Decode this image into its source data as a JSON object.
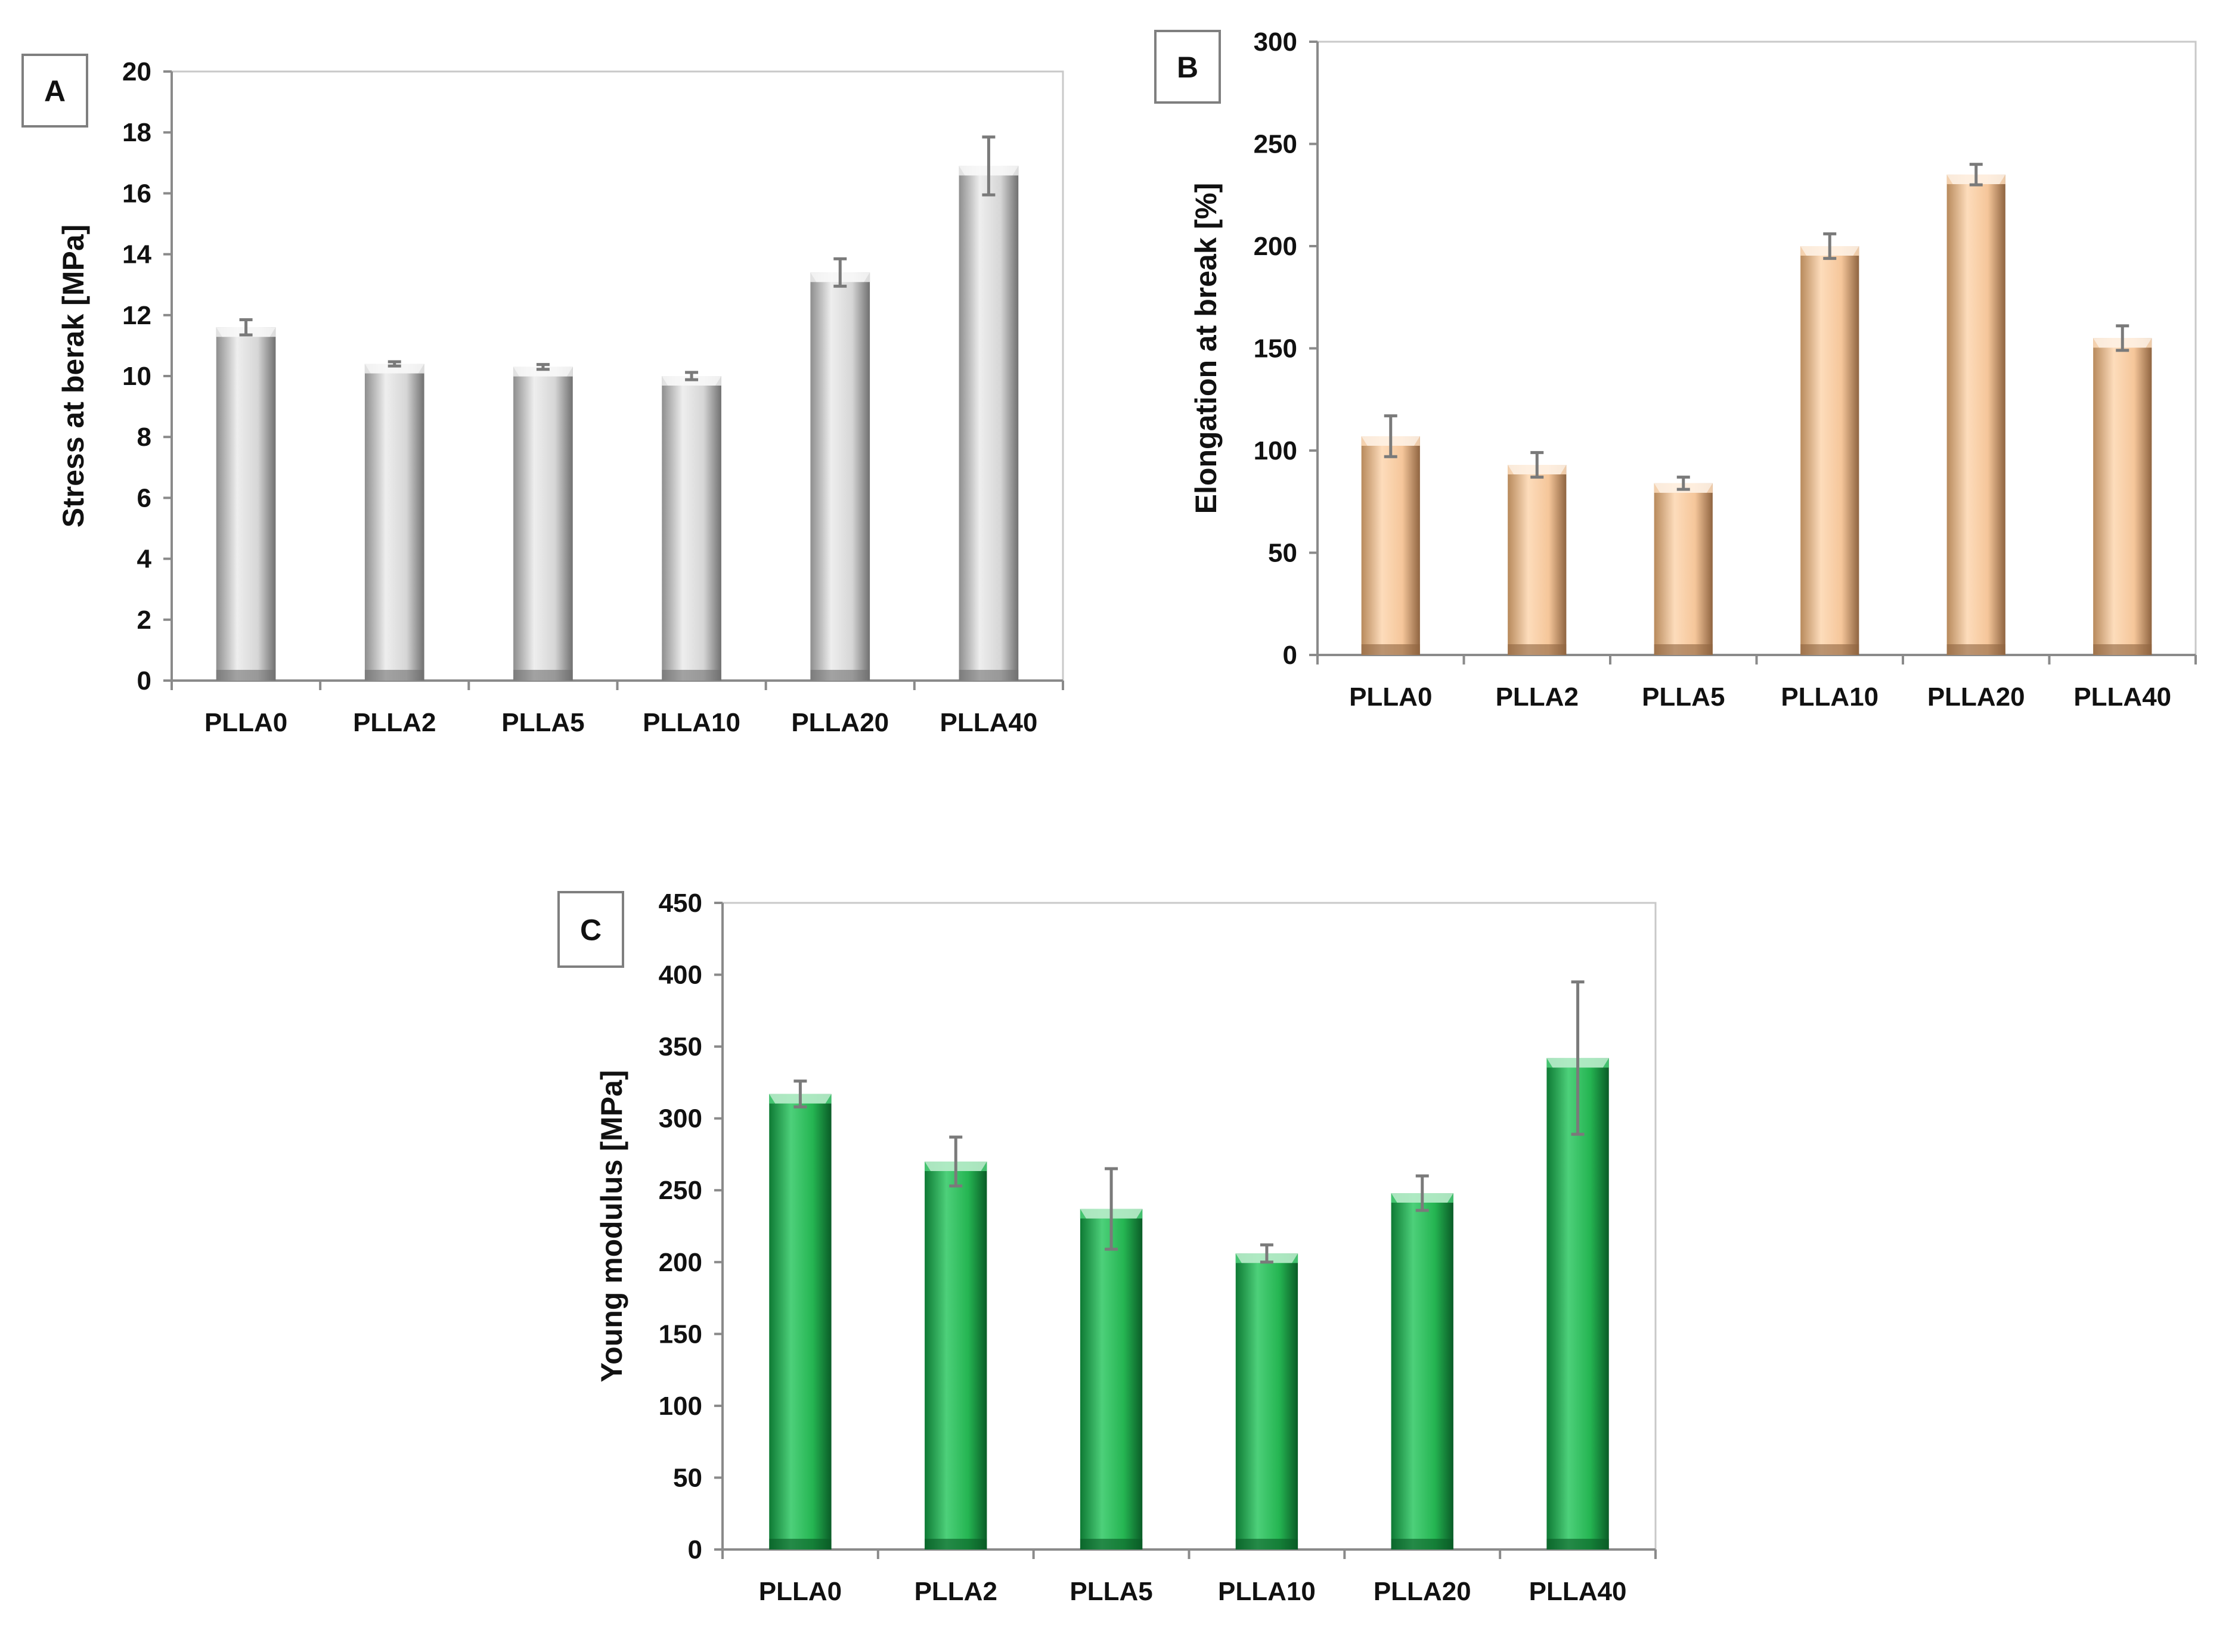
{
  "colors": {
    "gray_bar": [
      "#8e8e8e",
      "#d6d6d6",
      "#eeeeee",
      "#707070"
    ],
    "orange_bar": [
      "#b88a5c",
      "#f5c69a",
      "#fddcbb",
      "#8f6440"
    ],
    "green_bar": [
      "#0e7a34",
      "#25b552",
      "#4dd07a",
      "#0a5c27"
    ],
    "error_bar": "#7a7a7a",
    "axis": "#8a8a8a"
  },
  "chart_data": [
    {
      "id": "A",
      "panel_label": "A",
      "type": "bar",
      "categories": [
        "PLLA0",
        "PLLA2",
        "PLLA5",
        "PLLA10",
        "PLLA20",
        "PLLA40"
      ],
      "values": [
        11.6,
        10.4,
        10.3,
        10.0,
        13.4,
        16.9
      ],
      "errors": [
        0.25,
        0.07,
        0.08,
        0.12,
        0.45,
        0.95
      ],
      "ylabel": "Stress at berak [MPa]",
      "xlabel": "",
      "ylim": [
        0,
        20
      ],
      "yticks": [
        "0",
        "2",
        "4",
        "6",
        "8",
        "10",
        "12",
        "14",
        "16",
        "18",
        "20"
      ],
      "color_key": "gray_bar"
    },
    {
      "id": "B",
      "panel_label": "B",
      "type": "bar",
      "categories": [
        "PLLA0",
        "PLLA2",
        "PLLA5",
        "PLLA10",
        "PLLA20",
        "PLLA40"
      ],
      "values": [
        107,
        93,
        84,
        200,
        235,
        155
      ],
      "errors": [
        10,
        6,
        3,
        6,
        5,
        6
      ],
      "ylabel": "Elongation at break [%]",
      "xlabel": "",
      "ylim": [
        0,
        300
      ],
      "yticks": [
        "0",
        "50",
        "100",
        "150",
        "200",
        "250",
        "300"
      ],
      "color_key": "orange_bar"
    },
    {
      "id": "C",
      "panel_label": "C",
      "type": "bar",
      "categories": [
        "PLLA0",
        "PLLA2",
        "PLLA5",
        "PLLA10",
        "PLLA20",
        "PLLA40"
      ],
      "values": [
        317,
        270,
        237,
        206,
        248,
        342
      ],
      "errors": [
        9,
        17,
        28,
        6,
        12,
        53
      ],
      "ylabel": "Young modulus [MPa]",
      "xlabel": "",
      "ylim": [
        0,
        450
      ],
      "yticks": [
        "0",
        "50",
        "100",
        "150",
        "200",
        "250",
        "300",
        "350",
        "400",
        "450"
      ],
      "color_key": "green_bar"
    }
  ]
}
